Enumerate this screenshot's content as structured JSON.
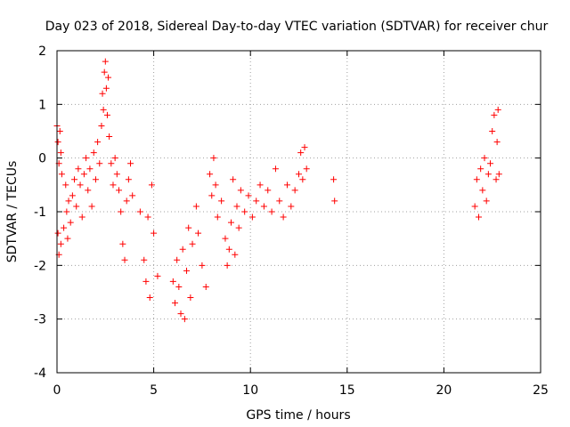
{
  "chart_data": {
    "type": "scatter",
    "title": "Day 023 of 2018, Sidereal Day-to-day VTEC variation (SDTVAR) for receiver chur",
    "xlabel": "GPS time / hours",
    "ylabel": "SDTVAR / TECUs",
    "xlim": [
      0,
      25
    ],
    "ylim": [
      -4,
      2
    ],
    "xticks": [
      0,
      5,
      10,
      15,
      20,
      25
    ],
    "yticks": [
      -4,
      -3,
      -2,
      -1,
      0,
      1,
      2
    ],
    "grid": true,
    "marker": "+",
    "color": "#ff0000",
    "series": [
      {
        "name": "SDTVAR",
        "points": [
          [
            0.0,
            0.6
          ],
          [
            0.05,
            0.3
          ],
          [
            0.1,
            -0.1
          ],
          [
            0.15,
            0.5
          ],
          [
            0.2,
            0.1
          ],
          [
            0.25,
            -0.3
          ],
          [
            0.1,
            -1.8
          ],
          [
            0.05,
            -1.4
          ],
          [
            0.2,
            -1.6
          ],
          [
            0.35,
            -1.3
          ],
          [
            0.45,
            -0.5
          ],
          [
            0.5,
            -1.0
          ],
          [
            0.55,
            -1.5
          ],
          [
            0.6,
            -0.8
          ],
          [
            0.7,
            -1.2
          ],
          [
            0.8,
            -0.7
          ],
          [
            0.9,
            -0.4
          ],
          [
            1.0,
            -0.9
          ],
          [
            1.1,
            -0.2
          ],
          [
            1.2,
            -0.5
          ],
          [
            1.3,
            -1.1
          ],
          [
            1.4,
            -0.3
          ],
          [
            1.5,
            0.0
          ],
          [
            1.6,
            -0.6
          ],
          [
            1.7,
            -0.2
          ],
          [
            1.8,
            -0.9
          ],
          [
            1.9,
            0.1
          ],
          [
            2.0,
            -0.4
          ],
          [
            2.1,
            0.3
          ],
          [
            2.2,
            -0.1
          ],
          [
            2.3,
            0.6
          ],
          [
            2.35,
            1.2
          ],
          [
            2.4,
            0.9
          ],
          [
            2.45,
            1.6
          ],
          [
            2.5,
            1.8
          ],
          [
            2.55,
            1.3
          ],
          [
            2.6,
            0.8
          ],
          [
            2.65,
            1.5
          ],
          [
            2.7,
            0.4
          ],
          [
            2.8,
            -0.1
          ],
          [
            2.9,
            -0.5
          ],
          [
            3.0,
            0.0
          ],
          [
            3.1,
            -0.3
          ],
          [
            3.2,
            -0.6
          ],
          [
            3.3,
            -1.0
          ],
          [
            3.4,
            -1.6
          ],
          [
            3.5,
            -1.9
          ],
          [
            3.6,
            -0.8
          ],
          [
            3.7,
            -0.4
          ],
          [
            3.8,
            -0.1
          ],
          [
            3.9,
            -0.7
          ],
          [
            4.3,
            -1.0
          ],
          [
            4.5,
            -1.9
          ],
          [
            4.6,
            -2.3
          ],
          [
            4.7,
            -1.1
          ],
          [
            4.8,
            -2.6
          ],
          [
            4.9,
            -0.5
          ],
          [
            5.0,
            -1.4
          ],
          [
            5.2,
            -2.2
          ],
          [
            6.0,
            -2.3
          ],
          [
            6.1,
            -2.7
          ],
          [
            6.2,
            -1.9
          ],
          [
            6.3,
            -2.4
          ],
          [
            6.4,
            -2.9
          ],
          [
            6.5,
            -1.7
          ],
          [
            6.6,
            -3.0
          ],
          [
            6.7,
            -2.1
          ],
          [
            6.8,
            -1.3
          ],
          [
            6.9,
            -2.6
          ],
          [
            7.0,
            -1.6
          ],
          [
            7.2,
            -0.9
          ],
          [
            7.3,
            -1.4
          ],
          [
            7.5,
            -2.0
          ],
          [
            7.7,
            -2.4
          ],
          [
            7.9,
            -0.3
          ],
          [
            8.0,
            -0.7
          ],
          [
            8.1,
            0.0
          ],
          [
            8.2,
            -0.5
          ],
          [
            8.3,
            -1.1
          ],
          [
            8.5,
            -0.8
          ],
          [
            8.7,
            -1.5
          ],
          [
            8.8,
            -2.0
          ],
          [
            8.9,
            -1.7
          ],
          [
            9.0,
            -1.2
          ],
          [
            9.1,
            -0.4
          ],
          [
            9.2,
            -1.8
          ],
          [
            9.3,
            -0.9
          ],
          [
            9.4,
            -1.3
          ],
          [
            9.5,
            -0.6
          ],
          [
            9.7,
            -1.0
          ],
          [
            9.9,
            -0.7
          ],
          [
            10.1,
            -1.1
          ],
          [
            10.3,
            -0.8
          ],
          [
            10.5,
            -0.5
          ],
          [
            10.7,
            -0.9
          ],
          [
            10.9,
            -0.6
          ],
          [
            11.1,
            -1.0
          ],
          [
            11.3,
            -0.2
          ],
          [
            11.5,
            -0.8
          ],
          [
            11.7,
            -1.1
          ],
          [
            11.9,
            -0.5
          ],
          [
            12.1,
            -0.9
          ],
          [
            12.3,
            -0.6
          ],
          [
            12.5,
            -0.3
          ],
          [
            12.6,
            0.1
          ],
          [
            12.7,
            -0.4
          ],
          [
            12.8,
            0.2
          ],
          [
            12.9,
            -0.2
          ],
          [
            14.3,
            -0.4
          ],
          [
            14.35,
            -0.8
          ],
          [
            21.6,
            -0.9
          ],
          [
            21.7,
            -0.4
          ],
          [
            21.8,
            -1.1
          ],
          [
            21.9,
            -0.2
          ],
          [
            22.0,
            -0.6
          ],
          [
            22.1,
            0.0
          ],
          [
            22.2,
            -0.8
          ],
          [
            22.3,
            -0.3
          ],
          [
            22.4,
            -0.1
          ],
          [
            22.5,
            0.5
          ],
          [
            22.6,
            0.8
          ],
          [
            22.7,
            -0.4
          ],
          [
            22.75,
            0.3
          ],
          [
            22.8,
            0.9
          ],
          [
            22.85,
            -0.3
          ]
        ]
      }
    ]
  }
}
